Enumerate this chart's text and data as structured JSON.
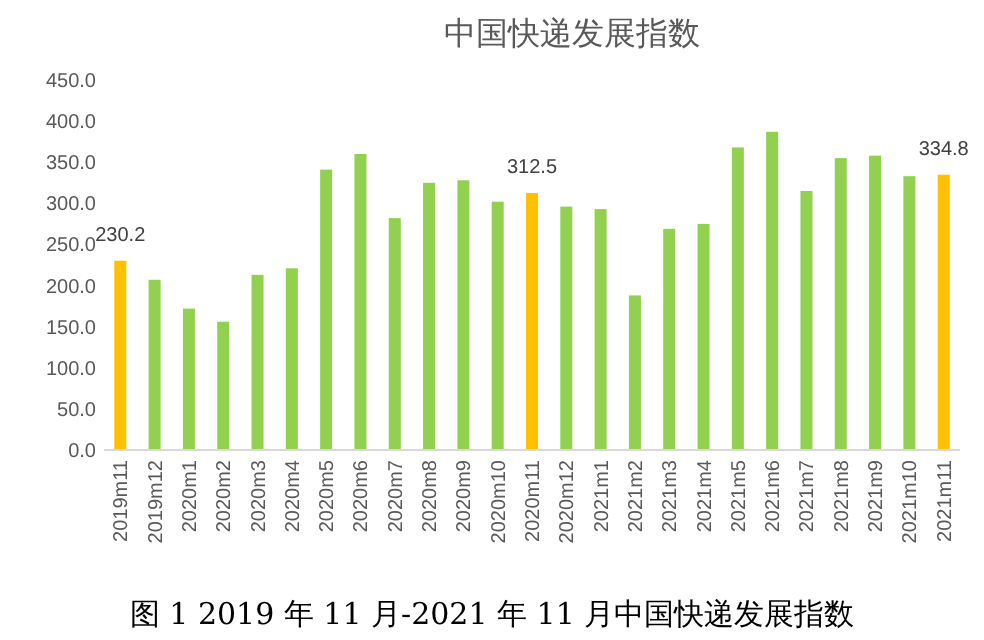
{
  "chart_data": {
    "type": "bar",
    "title": "中国快递发展指数",
    "categories": [
      "2019m11",
      "2019m12",
      "2020m1",
      "2020m2",
      "2020m3",
      "2020m4",
      "2020m5",
      "2020m6",
      "2020m7",
      "2020m8",
      "2020m9",
      "2020m10",
      "2020m11",
      "2020m12",
      "2021m1",
      "2021m2",
      "2021m3",
      "2021m4",
      "2021m5",
      "2021m6",
      "2021m7",
      "2021m8",
      "2021m9",
      "2021m10",
      "2021m11"
    ],
    "values": [
      230.2,
      207,
      172,
      156,
      213,
      221,
      341,
      360,
      282,
      325,
      328,
      302,
      312.5,
      296,
      293,
      188,
      269,
      275,
      368,
      387,
      315,
      355,
      358,
      333,
      334.8
    ],
    "colors": [
      "#ffc000",
      "#92d050",
      "#92d050",
      "#92d050",
      "#92d050",
      "#92d050",
      "#92d050",
      "#92d050",
      "#92d050",
      "#92d050",
      "#92d050",
      "#92d050",
      "#ffc000",
      "#92d050",
      "#92d050",
      "#92d050",
      "#92d050",
      "#92d050",
      "#92d050",
      "#92d050",
      "#92d050",
      "#92d050",
      "#92d050",
      "#92d050",
      "#ffc000"
    ],
    "value_labels": [
      "230.2",
      null,
      null,
      null,
      null,
      null,
      null,
      null,
      null,
      null,
      null,
      null,
      "312.5",
      null,
      null,
      null,
      null,
      null,
      null,
      null,
      null,
      null,
      null,
      null,
      "334.8"
    ],
    "ylim": [
      0,
      450
    ],
    "yticks": [
      {
        "value": 0,
        "label": "0.0"
      },
      {
        "value": 50,
        "label": "50.0"
      },
      {
        "value": 100,
        "label": "100.0"
      },
      {
        "value": 150,
        "label": "150.0"
      },
      {
        "value": 200,
        "label": "200.0"
      },
      {
        "value": 250,
        "label": "250.0"
      },
      {
        "value": 300,
        "label": "300.0"
      },
      {
        "value": 350,
        "label": "350.0"
      },
      {
        "value": 400,
        "label": "400.0"
      },
      {
        "value": 450,
        "label": "450.0"
      }
    ],
    "grid": false,
    "annotations": [
      "图 1 2019 年 11 月-2021 年 11 月中国快递发展指数"
    ]
  }
}
